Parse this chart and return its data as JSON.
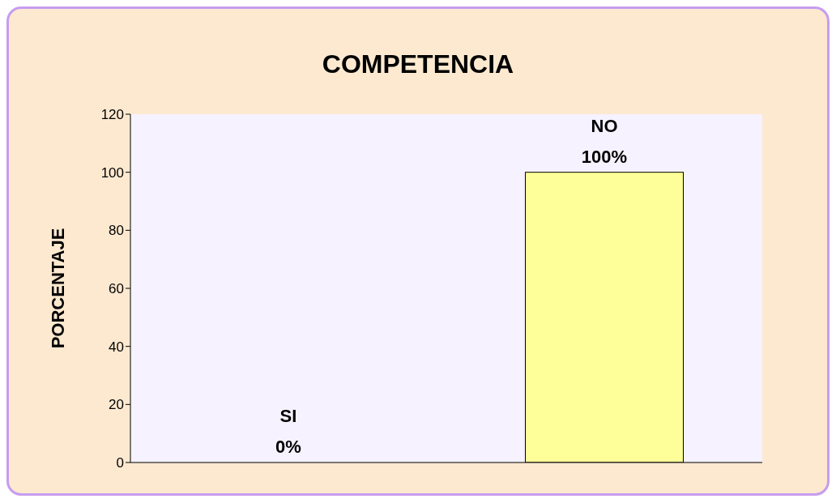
{
  "chart_data": {
    "type": "bar",
    "title": "COMPETENCIA",
    "ylabel": "PORCENTAJE",
    "categories": [
      null,
      null
    ],
    "values": [
      0,
      100
    ],
    "value_labels": [
      "SI 0%",
      "NO 100%"
    ],
    "color": "#ffff99",
    "ylim": [
      0,
      120
    ],
    "yticks": [
      0,
      20,
      40,
      60,
      80,
      100,
      120
    ],
    "grid": false,
    "legend": false
  }
}
